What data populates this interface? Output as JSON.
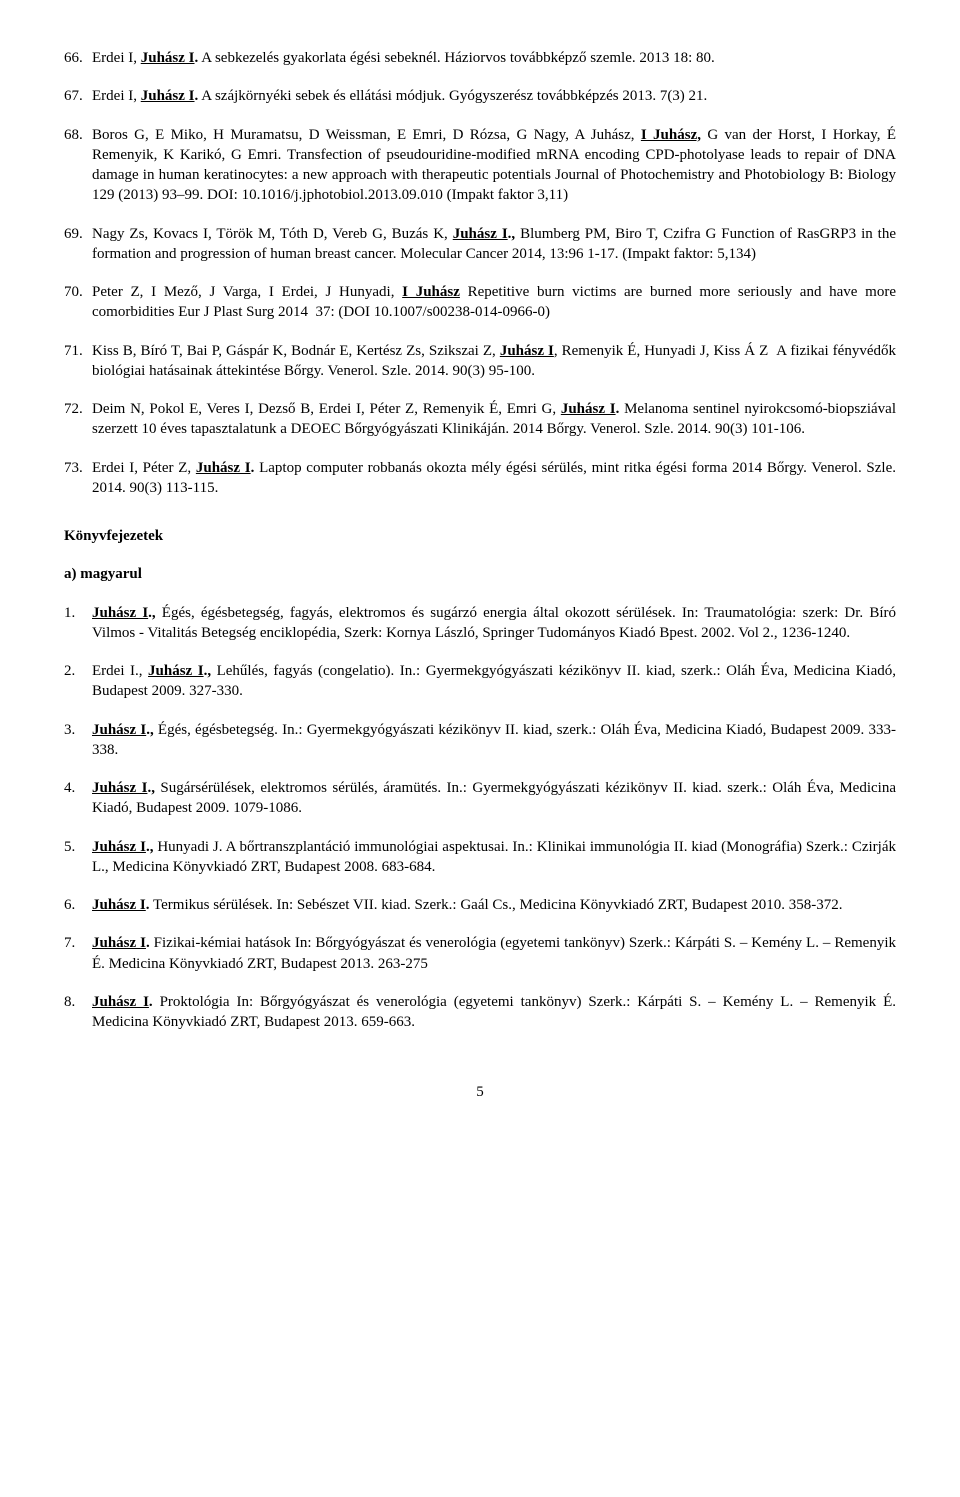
{
  "refs_a": [
    {
      "n": "66.",
      "text": "Erdei I, <b><span class=\"ul\">Juhász I</span>.</b> A sebkezelés gyakorlata égési sebeknél. Háziorvos továbbképző szemle. 2013 18: 80."
    },
    {
      "n": "67.",
      "text": "Erdei I, <b><span class=\"ul\">Juhász I</span>.</b> A szájkörnyéki sebek és ellátási módjuk. Gyógyszerész továbbképzés 2013. 7(3) 21."
    },
    {
      "n": "68.",
      "text": "Boros G, E Miko, H Muramatsu, D Weissman, E Emri, D Rózsa, G Nagy, A Juhász, <b><span class=\"ul\">I Juhász,</span></b> G van der Horst, I Horkay, É Remenyik, K Karikó, G Emri. Transfection of pseudouridine-modified mRNA encoding CPD-photolyase leads to repair of DNA damage in human keratinocytes: a new approach with therapeutic potentials Journal of Photochemistry and Photobiology B: Biology 129 (2013) 93–99. DOI: 10.1016/j.jphotobiol.2013.09.010 (Impakt faktor 3,11)"
    },
    {
      "n": "69.",
      "text": "Nagy Zs, Kovacs I, Török M, Tóth D, Vereb G, Buzás K, <b><span class=\"ul\">Juhász I</span>.,</b> Blumberg PM, Biro T, Czifra G Function of RasGRP3 in the formation and progression of human breast cancer. Molecular Cancer 2014, 13:96 1-17. (Impakt faktor: 5,134)"
    },
    {
      "n": "70.",
      "text": "Peter Z, I Mező, J Varga, I Erdei, J Hunyadi, <b><span class=\"ul\">I Juhász</span></b> Repetitive burn victims are burned more seriously and have more comorbidities Eur J Plast Surg 2014 &nbsp;37: (DOI 10.1007/s00238-014-0966-0)"
    },
    {
      "n": "71.",
      "text": "Kiss B, Bíró T, Bai P, Gáspár K, Bodnár E, Kertész Zs, Szikszai Z, <b><span class=\"ul\">Juhász I</span></b>, Remenyik É, Hunyadi J, Kiss Á Z &nbsp;A fizikai fényvédők biológiai hatásainak áttekintése Bőrgy. Venerol. Szle. 2014. 90(3) 95-100."
    },
    {
      "n": "72.",
      "text": "Deim N, Pokol E, Veres I, Dezső B, Erdei I, Péter Z, Remenyik É, Emri G, <b><span class=\"ul\">Juhász I</span>.</b> Melanoma sentinel nyirokcsomó-biopsziával szerzett 10 éves tapasztalatunk a DEOEC Bőrgyógyászati Klinikáján. 2014 Bőrgy. Venerol. Szle. 2014. 90(3) 101-106."
    },
    {
      "n": "73.",
      "text": "Erdei I, Péter Z, <b><span class=\"ul\">Juhász I</span>.</b> Laptop computer robbanás okozta mély égési sérülés, mint ritka égési forma 2014 Bőrgy. Venerol. Szle. 2014. 90(3) 113-115."
    }
  ],
  "section_title": "Könyvfejezetek",
  "subsection_title": "a) magyarul",
  "refs_b": [
    {
      "n": "1.",
      "text": "<b><span class=\"ul\">Juhász I</span>.,</b> Égés, égésbetegség, fagyás, elektromos és sugárzó energia által okozott sérülések. In: Traumatológia: szerk: Dr. Bíró Vilmos - Vitalitás Betegség enciklopédia, Szerk: Kornya László, Springer Tudományos Kiadó Bpest. 2002. Vol 2., 1236-1240."
    },
    {
      "n": "2.",
      "text": "Erdei I., <b><span class=\"ul\">Juhász I</span>.,</b> Lehűlés, fagyás (congelatio). In.: Gyermekgyógyászati kézikönyv II. kiad, szerk.: Oláh Éva, Medicina Kiadó, Budapest 2009. 327-330."
    },
    {
      "n": "3.",
      "text": "<b><span class=\"ul\">Juhász I</span>.,</b> Égés, égésbetegség. In.: Gyermekgyógyászati kézikönyv II. kiad, szerk.: Oláh Éva, Medicina Kiadó, Budapest 2009. 333-338."
    },
    {
      "n": "4.",
      "text": "<b><span class=\"ul\">Juhász I</span>.,</b> Sugársérülések, elektromos sérülés, áramütés. In.: Gyermekgyógyászati kézikönyv II. kiad. szerk.: Oláh Éva, Medicina Kiadó, Budapest 2009. 1079-1086."
    },
    {
      "n": "5.",
      "text": "<b><span class=\"ul\">Juhász I</span>.,</b> Hunyadi J. A bőrtranszplantáció immunológiai aspektusai. In.: Klinikai immunológia II. kiad (Monográfia) Szerk.: Czirják L., Medicina Könyvkiadó ZRT, Budapest 2008. 683-684."
    },
    {
      "n": "6.",
      "text": "<b><span class=\"ul\">Juhász I</span>.</b> Termikus sérülések. In: Sebészet VII. kiad. Szerk.: Gaál Cs., Medicina Könyvkiadó ZRT, Budapest 2010. 358-372."
    },
    {
      "n": "7.",
      "text": "<b><span class=\"ul\">Juhász I</span>.</b> Fizikai-kémiai hatások In: Bőrgyógyászat és venerológia (egyetemi tankönyv) Szerk.: Kárpáti S. – Kemény L. – Remenyik É. Medicina Könyvkiadó ZRT, Budapest 2013. 263-275"
    },
    {
      "n": "8.",
      "text": "<b><span class=\"ul\">Juhász I</span>.</b> Proktológia In: Bőrgyógyászat és venerológia (egyetemi tankönyv) Szerk.: Kárpáti S. – Kemény L. – Remenyik É. Medicina Könyvkiadó ZRT, Budapest 2013. 659-663."
    }
  ],
  "page_number": "5"
}
